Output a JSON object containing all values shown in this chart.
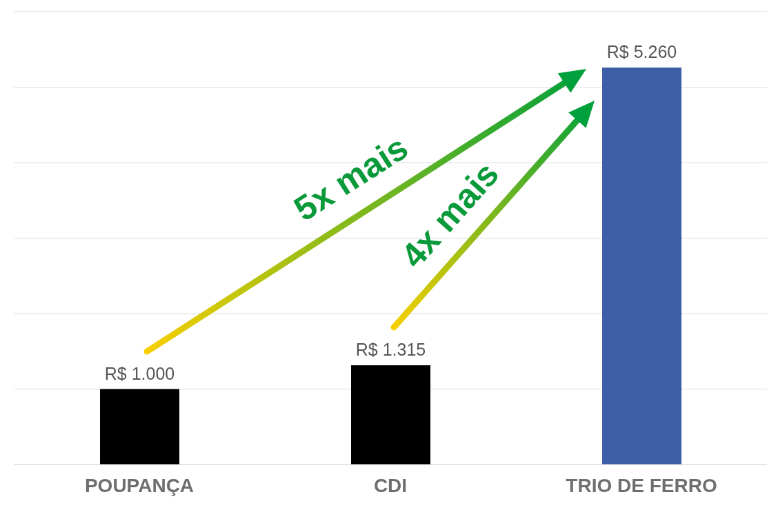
{
  "chart_data": {
    "type": "bar",
    "categories": [
      "POUPANÇA",
      "CDI",
      "TRIO DE FERRO"
    ],
    "values": [
      1000,
      1315,
      5260
    ],
    "colors": [
      "#000000",
      "#000000",
      "#3f5ea8"
    ],
    "value_labels": [
      "R$ 1.000",
      "R$ 1.315",
      "R$ 5.260"
    ],
    "tick_labels": "x",
    "grid": "y",
    "annotations": [
      "5x mais",
      "4x mais"
    ]
  }
}
